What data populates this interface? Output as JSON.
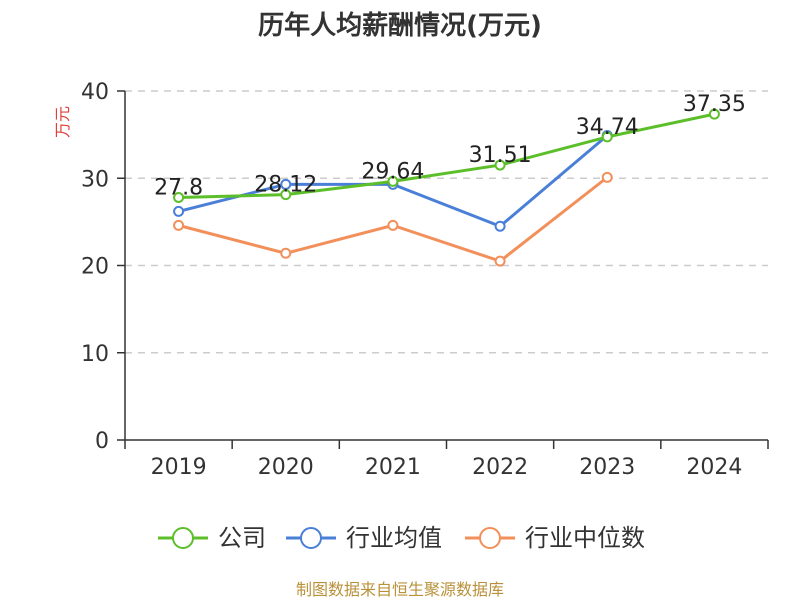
{
  "chart_data": {
    "type": "line",
    "title": "历年人均薪酬情况(万元)",
    "ylabel": "万元",
    "xlabel": "",
    "categories": [
      "2019",
      "2020",
      "2021",
      "2022",
      "2023",
      "2024"
    ],
    "ylim": [
      0,
      40
    ],
    "yticks": [
      0,
      10,
      20,
      30,
      40
    ],
    "grid": true,
    "legend": "bottom",
    "series": [
      {
        "name": "公司",
        "color": "#5cbf2a",
        "values": [
          27.8,
          28.12,
          29.64,
          31.51,
          34.74,
          37.35
        ],
        "labels": [
          "27.8",
          "28.12",
          "29.64",
          "31.51",
          "34.74",
          "37.35"
        ]
      },
      {
        "name": "行业均值",
        "color": "#4a7fd8",
        "values": [
          26.2,
          29.3,
          29.3,
          24.5,
          34.9,
          null
        ]
      },
      {
        "name": "行业中位数",
        "color": "#f28f5a",
        "values": [
          24.6,
          21.4,
          24.6,
          20.5,
          30.1,
          null
        ]
      }
    ]
  },
  "footer": {
    "source": "制图数据来自恒生聚源数据库"
  }
}
